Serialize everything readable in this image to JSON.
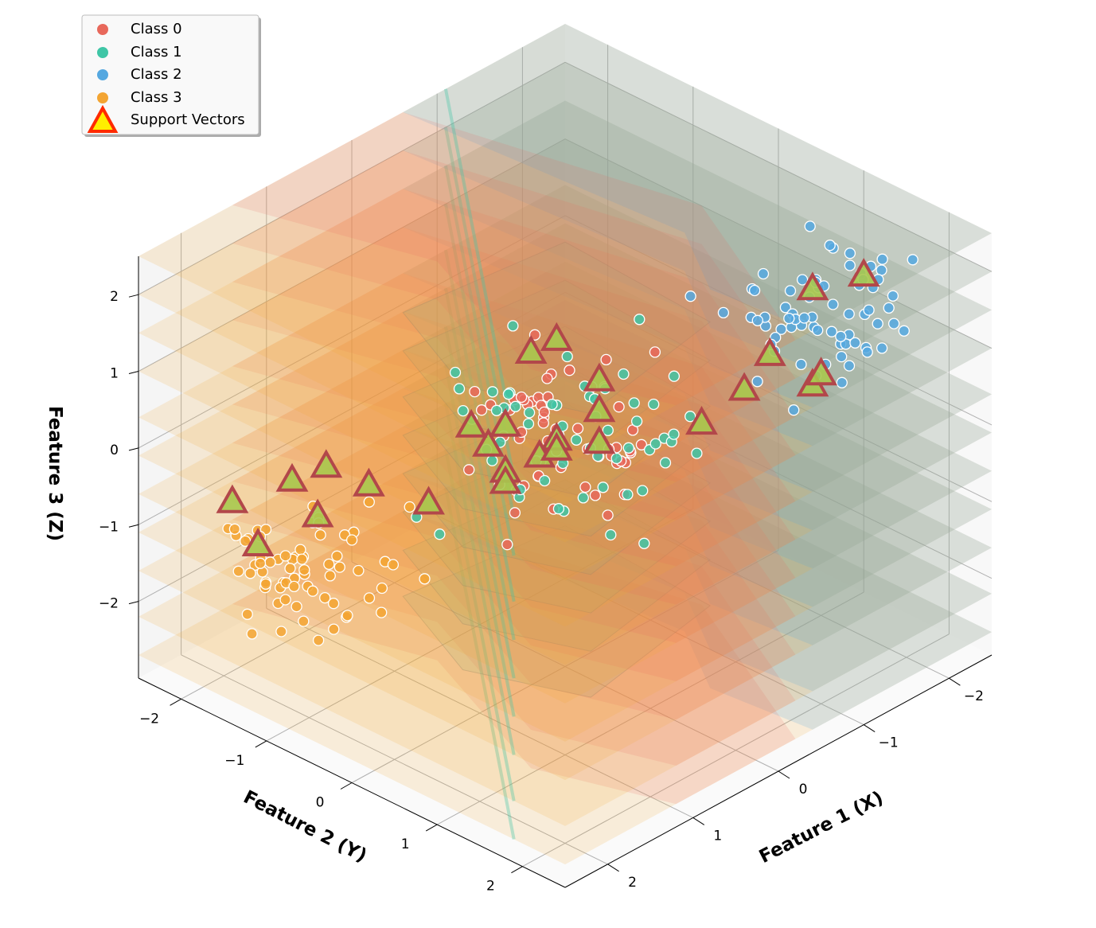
{
  "chart_data": {
    "type": "scatter",
    "title": "",
    "xlabel": "Feature 1 (X)",
    "ylabel": "Feature 2 (Y)",
    "zlabel": "Feature 3 (Z)",
    "xlim": [
      -2.5,
      2.5
    ],
    "ylim": [
      -2.5,
      2.5
    ],
    "zlim": [
      -3,
      2.5
    ],
    "grid": true,
    "legend_position": "top-left",
    "x_ticks": [
      -2,
      -1,
      0,
      1,
      2
    ],
    "y_ticks": [
      -2,
      -1,
      0,
      1,
      2
    ],
    "z_ticks": [
      -2,
      -1,
      0,
      1,
      2
    ],
    "x_tick_labels": [
      "−2",
      "−1",
      "0",
      "1",
      "2"
    ],
    "y_tick_labels": [
      "−2",
      "−1",
      "0",
      "1",
      "2"
    ],
    "z_tick_labels": [
      "−2",
      "−1",
      "0",
      "1",
      "2"
    ],
    "series": [
      {
        "name": "Class 0",
        "color": "#e8685b",
        "center": [
          0,
          0,
          0
        ],
        "spread": 0.45,
        "count": 60
      },
      {
        "name": "Class 1",
        "color": "#3fc6a6",
        "center": [
          0,
          0,
          0
        ],
        "spread": 0.5,
        "count": 60
      },
      {
        "name": "Class 2",
        "color": "#55a8e0",
        "center": [
          -1.5,
          1.5,
          1.5
        ],
        "spread": 0.35,
        "count": 70
      },
      {
        "name": "Class 3",
        "color": "#f3a533",
        "center": [
          1.5,
          -1.5,
          -1.5
        ],
        "spread": 0.35,
        "count": 70
      }
    ],
    "support_vectors": {
      "name": "Support Vectors",
      "points": [
        [
          -1.3,
          1.6,
          2.0
        ],
        [
          -2.0,
          1.5,
          1.7
        ],
        [
          -1.1,
          1.3,
          1.1
        ],
        [
          -1.6,
          1.4,
          0.6
        ],
        [
          -1.0,
          1.1,
          0.6
        ],
        [
          -1.6,
          1.3,
          0.4
        ],
        [
          -0.9,
          0.7,
          0.0
        ],
        [
          0.2,
          -0.2,
          1.1
        ],
        [
          0.0,
          -0.1,
          1.2
        ],
        [
          -0.3,
          0.1,
          0.6
        ],
        [
          0.3,
          -0.4,
          0.1
        ],
        [
          0.5,
          -0.6,
          0.1
        ],
        [
          0.2,
          0.1,
          0.0
        ],
        [
          0.0,
          -0.1,
          -0.1
        ],
        [
          0.2,
          -0.1,
          -0.2
        ],
        [
          -0.2,
          0.2,
          -0.1
        ],
        [
          -0.3,
          0.1,
          0.2
        ],
        [
          0.6,
          -0.1,
          -0.3
        ],
        [
          0.1,
          -0.8,
          -0.5
        ],
        [
          0.3,
          -0.4,
          -0.5
        ],
        [
          1.0,
          -0.6,
          -0.6
        ],
        [
          1.5,
          -1.3,
          -0.2
        ],
        [
          1.5,
          -1.7,
          -0.6
        ],
        [
          1.3,
          -1.0,
          -0.4
        ],
        [
          1.5,
          -1.4,
          -0.9
        ],
        [
          1.9,
          -2.0,
          -0.8
        ],
        [
          1.9,
          -1.7,
          -1.2
        ]
      ]
    },
    "decision_slices_z": [
      -2.7,
      -2.2,
      -1.6,
      -1.1,
      -0.6,
      -0.1,
      0.4,
      1.0,
      1.5,
      2.0,
      2.5
    ]
  },
  "legend": {
    "items": [
      {
        "label": "Class 0",
        "color": "#e8685b"
      },
      {
        "label": "Class 1",
        "color": "#3fc6a6"
      },
      {
        "label": "Class 2",
        "color": "#55a8e0"
      },
      {
        "label": "Class 3",
        "color": "#f3a533"
      },
      {
        "label": "Support Vectors",
        "color": "#ffee00",
        "edge_color": "#ff2a00"
      }
    ]
  }
}
